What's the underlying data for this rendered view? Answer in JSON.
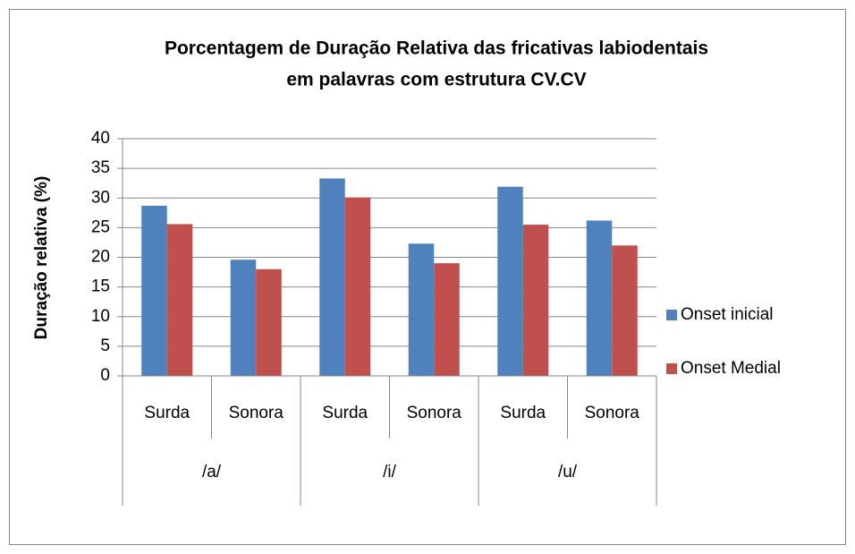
{
  "chart_data": {
    "type": "bar",
    "title": [
      "Porcentagem de Duração Relativa das fricativas labiodentais",
      "em palavras com estrutura CV.CV"
    ],
    "y_label": "Duração relativa (%)",
    "categories": [
      "Surda",
      "Sonora",
      "Surda",
      "Sonora",
      "Surda",
      "Sonora"
    ],
    "category_groups": [
      "/a/",
      "/i/",
      "/u/"
    ],
    "series": [
      {
        "name": "Onset inicial",
        "color": "#4f81bd",
        "values": [
          28.7,
          19.6,
          33.3,
          22.3,
          31.9,
          26.2
        ]
      },
      {
        "name": "Onset Medial",
        "color": "#c0504d",
        "values": [
          25.6,
          18.0,
          30.1,
          19.0,
          25.5,
          22.0
        ]
      }
    ],
    "ylim": [
      0,
      40
    ],
    "yticks": [
      0,
      5,
      10,
      15,
      20,
      25,
      30,
      35,
      40
    ],
    "grid": true,
    "legend": "right"
  }
}
